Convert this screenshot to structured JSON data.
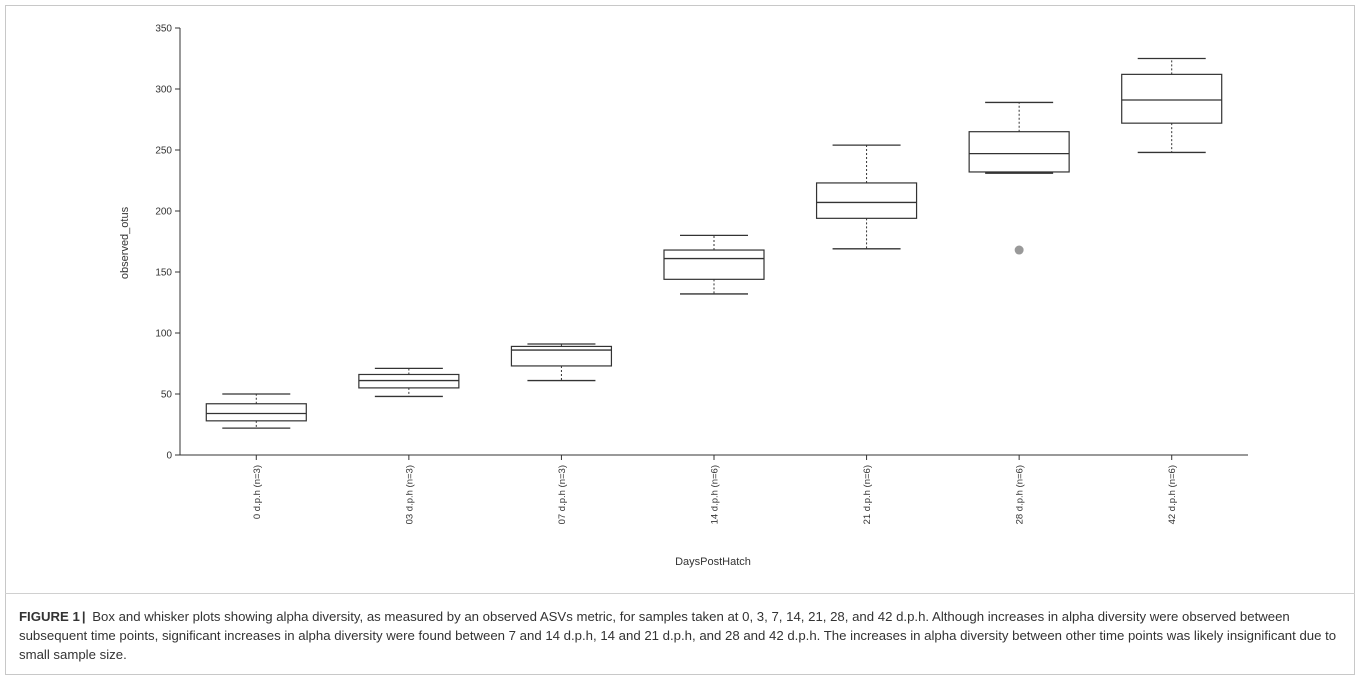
{
  "caption": {
    "label": "FIGURE 1",
    "separator": "|",
    "text": "Box and whisker plots showing alpha diversity, as measured by an observed ASVs metric, for samples taken at 0, 3, 7, 14, 21, 28, and 42 d.p.h. Although increases in alpha diversity were observed between subsequent time points, significant increases in alpha diversity were found between 7 and 14 d.p.h, 14 and 21 d.p.h, and 28 and 42 d.p.h. The increases in alpha diversity between other time points was likely insignificant due to small sample size."
  },
  "chart_data": {
    "type": "box",
    "xlabel": "DaysPostHatch",
    "ylabel": "observed_otus",
    "ylim": [
      0,
      350
    ],
    "yticks": [
      0,
      50,
      100,
      150,
      200,
      250,
      300,
      350
    ],
    "grid": false,
    "categories": [
      "0 d.p.h (n=3)",
      "03 d.p.h (n=3)",
      "07 d.p.h (n=3)",
      "14 d.p.h (n=6)",
      "21 d.p.h (n=6)",
      "28 d.p.h (n=6)",
      "42 d.p.h (n=6)"
    ],
    "boxes": [
      {
        "min": 22,
        "q1": 28,
        "median": 34,
        "q3": 42,
        "max": 50,
        "outliers": []
      },
      {
        "min": 48,
        "q1": 55,
        "median": 61,
        "q3": 66,
        "max": 71,
        "outliers": []
      },
      {
        "min": 61,
        "q1": 73,
        "median": 86,
        "q3": 89,
        "max": 91,
        "outliers": []
      },
      {
        "min": 132,
        "q1": 144,
        "median": 161,
        "q3": 168,
        "max": 180,
        "outliers": []
      },
      {
        "min": 169,
        "q1": 194,
        "median": 207,
        "q3": 223,
        "max": 254,
        "outliers": []
      },
      {
        "min": 231,
        "q1": 232,
        "median": 247,
        "q3": 265,
        "max": 289,
        "outliers": [
          168
        ]
      },
      {
        "min": 248,
        "q1": 272,
        "median": 291,
        "q3": 312,
        "max": 325,
        "outliers": []
      }
    ],
    "colors": {
      "box_stroke": "#333333",
      "box_fill": "#ffffff",
      "outlier": "#999999"
    }
  }
}
